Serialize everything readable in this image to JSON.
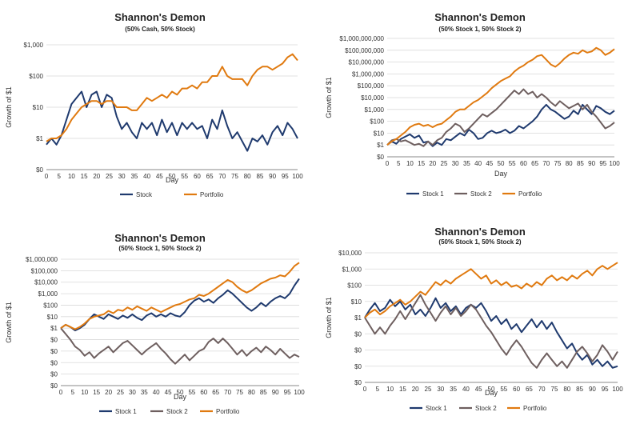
{
  "colors": {
    "stock": "#1f3a6e",
    "stock2": "#6e5f5f",
    "portfolio": "#e07a10",
    "grid": "#d9d9d9",
    "axis": "#888888"
  },
  "charts": [
    {
      "title": "Shannon's Demon",
      "subtitle": "(50% Cash, 50% Stock)",
      "ylabel": "Growth of $1",
      "xlabel": "Day",
      "ticks": [
        "$0",
        "$1",
        "$10",
        "$100",
        "$1,000"
      ],
      "legend": [
        "Stock",
        "Portfolio"
      ]
    },
    {
      "title": "Shannon's Demon",
      "subtitle": "(50% Stock 1, 50% Stock 2)",
      "ylabel": "Growth of $1",
      "xlabel": "Day",
      "ticks": [
        "$0",
        "$1",
        "$10",
        "$100",
        "$1,000",
        "$10,000",
        "$100,000",
        "$1,000,000",
        "$10,000,000",
        "$100,000,000",
        "$1,000,000,000"
      ],
      "legend": [
        "Stock 1",
        "Stock 2",
        "Portfolio"
      ]
    },
    {
      "title": "Shannon's Demon",
      "subtitle": "(50% Stock 1, 50% Stock 2)",
      "ylabel": "Growth of $1",
      "xlabel": "Day",
      "ticks": [
        "$0",
        "$0",
        "$0",
        "$0",
        "$0",
        "$1",
        "$10",
        "$100",
        "$1,000",
        "$10,000",
        "$100,000",
        "$1,000,000"
      ],
      "legend": [
        "Stock 1",
        "Stock 2",
        "Portfolio"
      ]
    },
    {
      "title": "Shannon's Demon",
      "subtitle": "(50% Stock 1, 50% Stock 2)",
      "ylabel": "Growth of $1",
      "xlabel": "Day",
      "ticks": [
        "$0",
        "$0",
        "$0",
        "$0",
        "$1",
        "$10",
        "$100",
        "$1,000",
        "$10,000"
      ],
      "legend": [
        "Stock 1",
        "Stock 2",
        "Portfolio"
      ]
    }
  ],
  "chart_data": [
    {
      "type": "line",
      "title": "Shannon's Demon",
      "subtitle": "(50% Cash, 50% Stock)",
      "xlabel": "Day",
      "ylabel": "Growth of $1",
      "yscale": "log10",
      "ylim_log10": [
        -1,
        3
      ],
      "xlim": [
        0,
        100
      ],
      "x_ticks": [
        0,
        5,
        10,
        15,
        20,
        25,
        30,
        35,
        40,
        45,
        50,
        55,
        60,
        65,
        70,
        75,
        80,
        85,
        90,
        95,
        100
      ],
      "x": [
        0,
        2,
        4,
        6,
        8,
        10,
        12,
        14,
        16,
        18,
        20,
        22,
        24,
        26,
        28,
        30,
        32,
        34,
        36,
        38,
        40,
        42,
        44,
        46,
        48,
        50,
        52,
        54,
        56,
        58,
        60,
        62,
        64,
        66,
        68,
        70,
        72,
        74,
        76,
        78,
        80,
        82,
        84,
        86,
        88,
        90,
        92,
        94,
        96,
        98,
        100
      ],
      "series": [
        {
          "name": "Stock",
          "log10_values": [
            -0.2,
            0.0,
            -0.2,
            0.1,
            0.6,
            1.1,
            1.3,
            1.5,
            1.0,
            1.4,
            1.5,
            1.0,
            1.4,
            1.3,
            0.7,
            0.3,
            0.5,
            0.2,
            0.0,
            0.5,
            0.3,
            0.5,
            0.1,
            0.6,
            0.2,
            0.5,
            0.1,
            0.5,
            0.3,
            0.5,
            0.3,
            0.4,
            0.0,
            0.6,
            0.3,
            0.9,
            0.4,
            0.0,
            0.2,
            -0.1,
            -0.4,
            0.0,
            -0.1,
            0.1,
            -0.2,
            0.2,
            0.4,
            0.1,
            0.5,
            0.3,
            0.0
          ]
        },
        {
          "name": "Portfolio",
          "log10_values": [
            -0.1,
            0.0,
            0.0,
            0.1,
            0.3,
            0.6,
            0.8,
            1.0,
            1.1,
            1.2,
            1.2,
            1.1,
            1.2,
            1.2,
            1.0,
            1.0,
            1.0,
            0.9,
            0.9,
            1.1,
            1.3,
            1.2,
            1.3,
            1.4,
            1.3,
            1.5,
            1.4,
            1.6,
            1.6,
            1.7,
            1.6,
            1.8,
            1.8,
            2.0,
            2.0,
            2.3,
            2.0,
            1.9,
            1.9,
            1.9,
            1.7,
            2.0,
            2.2,
            2.3,
            2.3,
            2.2,
            2.3,
            2.4,
            2.6,
            2.7,
            2.5
          ]
        }
      ]
    },
    {
      "type": "line",
      "title": "Shannon's Demon",
      "subtitle": "(50% Stock 1, 50% Stock 2)",
      "xlabel": "Day",
      "ylabel": "Growth of $1",
      "yscale": "log10",
      "ylim_log10": [
        -1,
        9
      ],
      "xlim": [
        0,
        100
      ],
      "x_ticks": [
        0,
        5,
        10,
        15,
        20,
        25,
        30,
        35,
        40,
        45,
        50,
        55,
        60,
        65,
        70,
        75,
        80,
        85,
        90,
        95,
        100
      ],
      "x": [
        0,
        2,
        4,
        6,
        8,
        10,
        12,
        14,
        16,
        18,
        20,
        22,
        24,
        26,
        28,
        30,
        32,
        34,
        36,
        38,
        40,
        42,
        44,
        46,
        48,
        50,
        52,
        54,
        56,
        58,
        60,
        62,
        64,
        66,
        68,
        70,
        72,
        74,
        76,
        78,
        80,
        82,
        84,
        86,
        88,
        90,
        92,
        94,
        96,
        98,
        100
      ],
      "series": [
        {
          "name": "Stock 1",
          "log10_values": [
            0.0,
            0.3,
            0.1,
            0.5,
            0.7,
            0.9,
            0.6,
            0.8,
            0.2,
            0.3,
            -0.1,
            0.2,
            0.0,
            0.5,
            0.4,
            0.7,
            1.0,
            0.8,
            1.3,
            1.0,
            0.5,
            0.6,
            1.0,
            1.2,
            1.0,
            1.1,
            1.3,
            1.0,
            1.2,
            1.6,
            1.4,
            1.7,
            2.0,
            2.4,
            3.0,
            3.4,
            3.0,
            2.8,
            2.5,
            2.2,
            2.4,
            2.9,
            2.6,
            3.4,
            3.0,
            2.6,
            3.3,
            3.1,
            2.8,
            2.6,
            2.9
          ]
        },
        {
          "name": "Stock 2",
          "log10_values": [
            0.0,
            0.4,
            0.5,
            0.3,
            0.4,
            0.2,
            0.0,
            0.1,
            -0.1,
            0.3,
            0.0,
            0.4,
            0.6,
            1.1,
            1.4,
            1.8,
            1.6,
            1.1,
            1.4,
            1.8,
            2.2,
            2.6,
            2.4,
            2.7,
            3.0,
            3.4,
            3.8,
            4.2,
            4.6,
            4.3,
            4.7,
            4.3,
            4.5,
            4.0,
            4.3,
            4.0,
            3.6,
            3.3,
            3.7,
            3.4,
            3.1,
            3.3,
            3.5,
            3.0,
            3.4,
            2.8,
            2.4,
            1.9,
            1.4,
            1.6,
            1.9
          ]
        },
        {
          "name": "Portfolio",
          "log10_values": [
            0.0,
            0.3,
            0.5,
            0.8,
            1.1,
            1.5,
            1.7,
            1.8,
            1.6,
            1.7,
            1.5,
            1.7,
            1.8,
            2.1,
            2.4,
            2.8,
            3.0,
            3.0,
            3.3,
            3.6,
            3.8,
            4.1,
            4.4,
            4.8,
            5.1,
            5.4,
            5.6,
            5.8,
            6.2,
            6.5,
            6.7,
            7.0,
            7.2,
            7.5,
            7.6,
            7.2,
            6.8,
            6.6,
            6.9,
            7.3,
            7.6,
            7.8,
            7.7,
            8.0,
            7.8,
            7.9,
            8.2,
            8.0,
            7.6,
            7.8,
            8.1
          ]
        }
      ]
    },
    {
      "type": "line",
      "title": "Shannon's Demon",
      "subtitle": "(50% Stock 1, 50% Stock 2)",
      "xlabel": "Day",
      "ylabel": "Growth of $1",
      "yscale": "log10",
      "ylim_log10": [
        -5,
        6
      ],
      "xlim": [
        0,
        100
      ],
      "x_ticks": [
        0,
        5,
        10,
        15,
        20,
        25,
        30,
        35,
        40,
        45,
        50,
        55,
        60,
        65,
        70,
        75,
        80,
        85,
        90,
        95,
        100
      ],
      "x": [
        0,
        2,
        4,
        6,
        8,
        10,
        12,
        14,
        16,
        18,
        20,
        22,
        24,
        26,
        28,
        30,
        32,
        34,
        36,
        38,
        40,
        42,
        44,
        46,
        48,
        50,
        52,
        54,
        56,
        58,
        60,
        62,
        64,
        66,
        68,
        70,
        72,
        74,
        76,
        78,
        80,
        82,
        84,
        86,
        88,
        90,
        92,
        94,
        96,
        98,
        100
      ],
      "series": [
        {
          "name": "Stock 1",
          "log10_values": [
            0.0,
            0.3,
            0.1,
            -0.2,
            0.0,
            0.3,
            0.8,
            1.2,
            1.0,
            0.8,
            1.2,
            1.0,
            0.8,
            1.1,
            0.9,
            1.2,
            0.9,
            0.7,
            1.1,
            1.3,
            1.0,
            1.2,
            1.0,
            1.3,
            1.1,
            1.0,
            1.4,
            2.0,
            2.4,
            2.6,
            2.3,
            2.5,
            2.2,
            2.6,
            2.9,
            3.3,
            3.0,
            2.6,
            2.2,
            1.8,
            1.5,
            1.8,
            2.2,
            1.9,
            2.3,
            2.6,
            2.8,
            2.6,
            3.0,
            3.7,
            4.3
          ]
        },
        {
          "name": "Stock 2",
          "log10_values": [
            0.0,
            -0.5,
            -1.0,
            -1.6,
            -1.9,
            -2.4,
            -2.1,
            -2.6,
            -2.2,
            -1.9,
            -1.6,
            -2.1,
            -1.7,
            -1.3,
            -1.1,
            -1.5,
            -1.9,
            -2.3,
            -1.9,
            -1.6,
            -1.3,
            -1.8,
            -2.2,
            -2.7,
            -3.1,
            -2.7,
            -2.3,
            -2.8,
            -2.4,
            -2.0,
            -1.8,
            -1.2,
            -0.9,
            -1.3,
            -0.9,
            -1.3,
            -1.8,
            -2.3,
            -1.9,
            -2.4,
            -2.0,
            -1.7,
            -2.1,
            -1.6,
            -1.9,
            -2.3,
            -1.8,
            -2.2,
            -2.6,
            -2.3,
            -2.5
          ]
        },
        {
          "name": "Portfolio",
          "log10_values": [
            0.0,
            0.3,
            0.1,
            -0.1,
            0.1,
            0.4,
            0.8,
            1.0,
            1.1,
            1.2,
            1.5,
            1.3,
            1.6,
            1.5,
            1.8,
            1.6,
            1.9,
            1.7,
            1.5,
            1.8,
            1.6,
            1.4,
            1.6,
            1.8,
            2.0,
            2.1,
            2.3,
            2.5,
            2.6,
            2.9,
            2.8,
            3.0,
            3.3,
            3.6,
            3.9,
            4.2,
            4.0,
            3.6,
            3.3,
            3.1,
            3.3,
            3.6,
            3.9,
            4.1,
            4.3,
            4.4,
            4.6,
            4.5,
            4.9,
            5.4,
            5.7
          ]
        }
      ]
    },
    {
      "type": "line",
      "title": "Shannon's Demon",
      "subtitle": "(50% Stock 1, 50% Stock 2)",
      "xlabel": "Day",
      "ylabel": "Growth of $1",
      "yscale": "log10",
      "ylim_log10": [
        -4,
        4
      ],
      "xlim": [
        0,
        100
      ],
      "x_ticks": [
        0,
        5,
        10,
        15,
        20,
        25,
        30,
        35,
        40,
        45,
        50,
        55,
        60,
        65,
        70,
        75,
        80,
        85,
        90,
        95,
        100
      ],
      "x": [
        0,
        2,
        4,
        6,
        8,
        10,
        12,
        14,
        16,
        18,
        20,
        22,
        24,
        26,
        28,
        30,
        32,
        34,
        36,
        38,
        40,
        42,
        44,
        46,
        48,
        50,
        52,
        54,
        56,
        58,
        60,
        62,
        64,
        66,
        68,
        70,
        72,
        74,
        76,
        78,
        80,
        82,
        84,
        86,
        88,
        90,
        92,
        94,
        96,
        98,
        100
      ],
      "series": [
        {
          "name": "Stock 1",
          "log10_values": [
            0.0,
            0.5,
            0.9,
            0.4,
            0.6,
            1.1,
            0.7,
            1.0,
            0.5,
            0.8,
            0.2,
            0.5,
            0.1,
            0.6,
            1.2,
            0.6,
            0.9,
            0.4,
            0.7,
            0.2,
            0.6,
            0.8,
            0.6,
            0.9,
            0.4,
            -0.2,
            0.1,
            -0.4,
            -0.1,
            -0.7,
            -0.4,
            -0.9,
            -0.5,
            -0.1,
            -0.6,
            -0.2,
            -0.7,
            -0.3,
            -0.9,
            -1.4,
            -1.9,
            -1.6,
            -2.2,
            -2.6,
            -2.3,
            -2.9,
            -2.6,
            -3.0,
            -2.7,
            -3.1,
            -3.0
          ]
        },
        {
          "name": "Stock 2",
          "log10_values": [
            0.0,
            -0.5,
            -1.0,
            -0.6,
            -1.0,
            -0.5,
            -0.1,
            0.4,
            -0.1,
            0.4,
            0.9,
            1.4,
            0.8,
            0.3,
            -0.2,
            0.3,
            0.7,
            0.2,
            0.6,
            0.1,
            0.4,
            0.8,
            0.5,
            0.0,
            -0.5,
            -0.9,
            -1.4,
            -1.9,
            -2.3,
            -1.8,
            -1.4,
            -1.8,
            -2.3,
            -2.8,
            -3.1,
            -2.6,
            -2.2,
            -2.6,
            -3.0,
            -2.7,
            -3.1,
            -2.6,
            -2.1,
            -1.8,
            -2.2,
            -2.7,
            -2.3,
            -1.7,
            -2.1,
            -2.6,
            -2.1
          ]
        },
        {
          "name": "Portfolio",
          "log10_values": [
            0.0,
            0.3,
            0.5,
            0.2,
            0.4,
            0.7,
            0.9,
            1.1,
            0.8,
            1.0,
            1.3,
            1.6,
            1.4,
            1.8,
            2.2,
            2.0,
            2.3,
            2.1,
            2.4,
            2.6,
            2.8,
            3.0,
            2.7,
            2.4,
            2.6,
            2.1,
            2.3,
            2.0,
            2.2,
            1.9,
            2.0,
            1.8,
            2.1,
            1.9,
            2.2,
            2.0,
            2.4,
            2.6,
            2.3,
            2.5,
            2.3,
            2.6,
            2.4,
            2.7,
            2.9,
            2.6,
            3.0,
            3.2,
            3.0,
            3.2,
            3.4
          ]
        }
      ]
    }
  ]
}
